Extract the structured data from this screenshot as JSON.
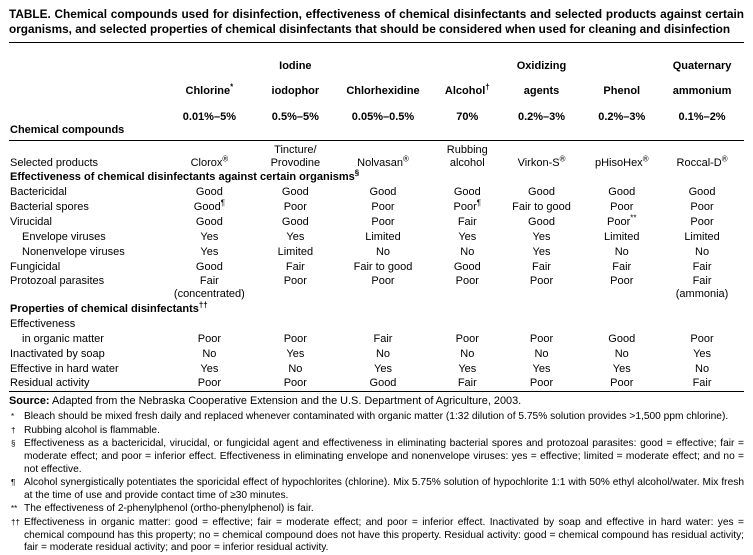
{
  "title": "TABLE. Chemical compounds used for disinfection, effectiveness of chemical disinfectants and selected products against certain organisms, and selected properties of chemical disinfectants that should be considered when used for cleaning and disinfection",
  "header": {
    "stub": "Chemical compounds",
    "cols": [
      {
        "top": "",
        "name": "Chlorine^*",
        "conc": "0.01%–5%"
      },
      {
        "top": "Iodine",
        "name": "iodophor",
        "conc": "0.5%–5%"
      },
      {
        "top": "",
        "name": "Chlorhexidine",
        "conc": "0.05%–0.5%"
      },
      {
        "top": "",
        "name": "Alcohol^†",
        "conc": "70%"
      },
      {
        "top": "Oxidizing",
        "name": "agents",
        "conc": "0.2%–3%"
      },
      {
        "top": "",
        "name": "Phenol",
        "conc": "0.2%–3%"
      },
      {
        "top": "Quaternary",
        "name": "ammonium",
        "conc": "0.1%–2%"
      }
    ]
  },
  "products": {
    "label": "Selected products",
    "cells": [
      "Clorox^®",
      "Tincture/\nProvodine",
      "Nolvasan^®",
      "Rubbing\nalcohol",
      "Virkon-S^®",
      "pHisoHex^®",
      "Roccal-D^®"
    ]
  },
  "sec1": {
    "heading": "Effectiveness of chemical disinfectants against certain organisms^§",
    "rows": [
      {
        "label": "Bactericidal",
        "cells": [
          "Good",
          "Good",
          "Good",
          "Good",
          "Good",
          "Good",
          "Good"
        ]
      },
      {
        "label": "Bacterial spores",
        "cells": [
          "Good^¶",
          "Poor",
          "Poor",
          "Poor^¶",
          "Fair to good",
          "Poor",
          "Poor"
        ]
      },
      {
        "label": "Virucidal",
        "cells": [
          "Good",
          "Good",
          "Poor",
          "Fair",
          "Good",
          "Poor^**",
          "Poor"
        ]
      },
      {
        "label": "Envelope viruses",
        "cells": [
          "Yes",
          "Yes",
          "Limited",
          "Yes",
          "Yes",
          "Limited",
          "Limited"
        ]
      },
      {
        "label": "Nonenvelope viruses",
        "cells": [
          "Yes",
          "Limited",
          "No",
          "No",
          "Yes",
          "No",
          "No"
        ]
      },
      {
        "label": "Fungicidal",
        "cells": [
          "Good",
          "Fair",
          "Fair to good",
          "Good",
          "Fair",
          "Fair",
          "Fair"
        ]
      },
      {
        "label": "Protozoal parasites",
        "cells": [
          "Fair\n(concentrated)",
          "Poor",
          "Poor",
          "Poor",
          "Poor",
          "Poor",
          "Fair\n(ammonia)"
        ]
      }
    ]
  },
  "sec2": {
    "heading": "Properties of chemical disinfectants^††",
    "rows": [
      {
        "label": "Effectiveness",
        "cells": [
          "",
          "",
          "",
          "",
          "",
          "",
          ""
        ]
      },
      {
        "label": "in organic matter",
        "cells": [
          "Poor",
          "Poor",
          "Fair",
          "Poor",
          "Poor",
          "Good",
          "Poor"
        ]
      },
      {
        "label": "Inactivated by soap",
        "cells": [
          "No",
          "Yes",
          "No",
          "No",
          "No",
          "No",
          "Yes"
        ]
      },
      {
        "label": "Effective in hard water",
        "cells": [
          "Yes",
          "No",
          "Yes",
          "Yes",
          "Yes",
          "Yes",
          "No"
        ]
      },
      {
        "label": "Residual activity",
        "cells": [
          "Poor",
          "Poor",
          "Good",
          "Fair",
          "Poor",
          "Poor",
          "Fair"
        ]
      }
    ]
  },
  "source": {
    "label": "Source:",
    "text": "Adapted from the Nebraska Cooperative Extension and the U.S. Department of Agriculture, 2003."
  },
  "footnotes": [
    {
      "marker": "*",
      "text": "Bleach should be mixed fresh daily and replaced whenever contaminated with organic matter (1:32 dilution of 5.75% solution provides >1,500 ppm chlorine)."
    },
    {
      "marker": "†",
      "text": "Rubbing alcohol is flammable."
    },
    {
      "marker": "§",
      "text": "Effectiveness as a bactericidal, virucidal, or fungicidal agent and effectiveness in eliminating bacterial spores and protozoal parasites: good = effective; fair = moderate effect; and poor = inferior effect. Effectiveness in eliminating envelope and nonenvelope viruses: yes = effective; limited = moderate effect; and no = not effective."
    },
    {
      "marker": "¶",
      "text": "Alcohol synergistically potentiates the sporicidal effect of hypochlorites (chlorine). Mix 5.75% solution of hypochlorite 1:1 with 50% ethyl alcohol/water. Mix fresh at the time of use and provide contact time of ≥30 minutes."
    },
    {
      "marker": "**",
      "text": "The effectiveness of 2-phenylphenol (ortho-phenylphenol) is fair."
    },
    {
      "marker": "††",
      "text": "Effectiveness in organic matter: good = effective; fair = moderate effect; and poor = inferior effect. Inactivated by soap and effective in hard water: yes = chemical compound has this property; no = chemical compound does not have this property. Residual activity: good = chemical compound has residual activity; fair = moderate residual activity; and poor = inferior residual activity."
    }
  ]
}
